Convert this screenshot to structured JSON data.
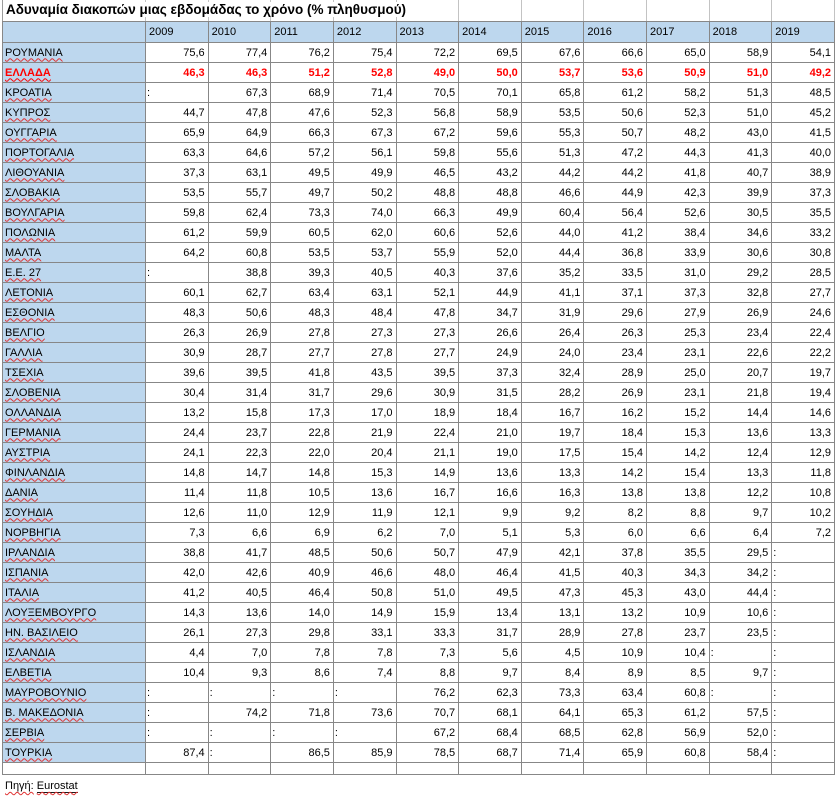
{
  "sheet": {
    "title": "Αδυναμία διακοπών μιας εβδομάδας το χρόνο (% πληθυσμού)",
    "columns": [
      "2009",
      "2010",
      "2011",
      "2012",
      "2013",
      "2014",
      "2015",
      "2016",
      "2017",
      "2018",
      "2019"
    ],
    "no_data_symbol": ":",
    "rows": [
      {
        "name": "ΡΟΥΜΑΝΙΑ",
        "highlight": false,
        "values": [
          "75,6",
          "77,4",
          "76,2",
          "75,4",
          "72,2",
          "69,5",
          "67,6",
          "66,6",
          "65,0",
          "58,9",
          "54,1"
        ]
      },
      {
        "name": "ΕΛΛΑΔΑ",
        "highlight": true,
        "values": [
          "46,3",
          "46,3",
          "51,2",
          "52,8",
          "49,0",
          "50,0",
          "53,7",
          "53,6",
          "50,9",
          "51,0",
          "49,2"
        ]
      },
      {
        "name": "ΚΡΟΑΤΙΑ",
        "highlight": false,
        "values": [
          ":",
          "67,3",
          "68,9",
          "71,4",
          "70,5",
          "70,1",
          "65,8",
          "61,2",
          "58,2",
          "51,3",
          "48,5"
        ]
      },
      {
        "name": "ΚΥΠΡΟΣ",
        "highlight": false,
        "values": [
          "44,7",
          "47,8",
          "47,6",
          "52,3",
          "56,8",
          "58,9",
          "53,5",
          "50,6",
          "52,3",
          "51,0",
          "45,2"
        ]
      },
      {
        "name": "ΟΥΓΓΑΡΙΑ",
        "highlight": false,
        "values": [
          "65,9",
          "64,9",
          "66,3",
          "67,3",
          "67,2",
          "59,6",
          "55,3",
          "50,7",
          "48,2",
          "43,0",
          "41,5"
        ]
      },
      {
        "name": "ΠΟΡΤΟΓΑΛΙΑ",
        "highlight": false,
        "values": [
          "63,3",
          "64,6",
          "57,2",
          "56,1",
          "59,8",
          "55,6",
          "51,3",
          "47,2",
          "44,3",
          "41,3",
          "40,0"
        ]
      },
      {
        "name": "ΛΙΘΟΥΑΝΙΑ",
        "highlight": false,
        "values": [
          "37,3",
          "63,1",
          "49,5",
          "49,9",
          "46,5",
          "43,2",
          "44,2",
          "44,2",
          "41,8",
          "40,7",
          "38,9"
        ]
      },
      {
        "name": "ΣΛΟΒΑΚΙΑ",
        "highlight": false,
        "values": [
          "53,5",
          "55,7",
          "49,7",
          "50,2",
          "48,8",
          "48,8",
          "46,6",
          "44,9",
          "42,3",
          "39,9",
          "37,3"
        ]
      },
      {
        "name": "ΒΟΥΛΓΑΡΙΑ",
        "highlight": false,
        "values": [
          "59,8",
          "62,4",
          "73,3",
          "74,0",
          "66,3",
          "49,9",
          "60,4",
          "56,4",
          "52,6",
          "30,5",
          "35,5"
        ]
      },
      {
        "name": "ΠΟΛΩΝΙΑ",
        "highlight": false,
        "values": [
          "61,2",
          "59,9",
          "60,5",
          "62,0",
          "60,6",
          "52,6",
          "44,0",
          "41,2",
          "38,4",
          "34,6",
          "33,2"
        ]
      },
      {
        "name": "ΜΑΛΤΑ",
        "highlight": false,
        "values": [
          "64,2",
          "60,8",
          "53,5",
          "53,7",
          "55,9",
          "52,0",
          "44,4",
          "36,8",
          "33,9",
          "30,6",
          "30,8"
        ]
      },
      {
        "name": "Ε.Ε. 27",
        "highlight": false,
        "values": [
          ":",
          "38,8",
          "39,3",
          "40,5",
          "40,3",
          "37,6",
          "35,2",
          "33,5",
          "31,0",
          "29,2",
          "28,5"
        ]
      },
      {
        "name": "ΛΕΤΟΝΙΑ",
        "highlight": false,
        "values": [
          "60,1",
          "62,7",
          "63,4",
          "63,1",
          "52,1",
          "44,9",
          "41,1",
          "37,1",
          "37,3",
          "32,8",
          "27,7"
        ]
      },
      {
        "name": "ΕΣΘΟΝΙΑ",
        "highlight": false,
        "values": [
          "48,3",
          "50,6",
          "48,3",
          "48,4",
          "47,8",
          "34,7",
          "31,9",
          "29,6",
          "27,9",
          "26,9",
          "24,6"
        ]
      },
      {
        "name": "ΒΕΛΓΙΟ",
        "highlight": false,
        "values": [
          "26,3",
          "26,9",
          "27,8",
          "27,3",
          "27,3",
          "26,6",
          "26,4",
          "26,3",
          "25,3",
          "23,4",
          "22,4"
        ]
      },
      {
        "name": "ΓΑΛΛΙΑ",
        "highlight": false,
        "values": [
          "30,9",
          "28,7",
          "27,7",
          "27,8",
          "27,7",
          "24,9",
          "24,0",
          "23,4",
          "23,1",
          "22,6",
          "22,2"
        ]
      },
      {
        "name": "ΤΣΕΧΙΑ",
        "highlight": false,
        "values": [
          "39,6",
          "39,5",
          "41,8",
          "43,5",
          "39,5",
          "37,3",
          "32,4",
          "28,9",
          "25,0",
          "20,7",
          "19,7"
        ]
      },
      {
        "name": "ΣΛΟΒΕΝΙΑ",
        "highlight": false,
        "values": [
          "30,4",
          "31,4",
          "31,7",
          "29,6",
          "30,9",
          "31,5",
          "28,2",
          "26,9",
          "23,1",
          "21,8",
          "19,4"
        ]
      },
      {
        "name": "ΟΛΛΑΝΔΙΑ",
        "highlight": false,
        "values": [
          "13,2",
          "15,8",
          "17,3",
          "17,0",
          "18,9",
          "18,4",
          "16,7",
          "16,2",
          "15,2",
          "14,4",
          "14,6"
        ]
      },
      {
        "name": "ΓΕΡΜΑΝΙΑ",
        "highlight": false,
        "values": [
          "24,4",
          "23,7",
          "22,8",
          "21,9",
          "22,4",
          "21,0",
          "19,7",
          "18,4",
          "15,3",
          "13,6",
          "13,3"
        ]
      },
      {
        "name": "ΑΥΣΤΡΙΑ",
        "highlight": false,
        "values": [
          "24,1",
          "22,3",
          "22,0",
          "20,4",
          "21,1",
          "19,0",
          "17,5",
          "15,4",
          "14,2",
          "12,4",
          "12,9"
        ]
      },
      {
        "name": "ΦΙΝΛΑΝΔΙΑ",
        "highlight": false,
        "values": [
          "14,8",
          "14,7",
          "14,8",
          "15,3",
          "14,9",
          "13,6",
          "13,3",
          "14,2",
          "15,4",
          "13,3",
          "11,8"
        ]
      },
      {
        "name": "ΔΑΝΙΑ",
        "highlight": false,
        "values": [
          "11,4",
          "11,8",
          "10,5",
          "13,6",
          "16,7",
          "16,6",
          "16,3",
          "13,8",
          "13,8",
          "12,2",
          "10,8"
        ]
      },
      {
        "name": "ΣΟΥΗΔΙΑ",
        "highlight": false,
        "values": [
          "12,6",
          "11,0",
          "12,9",
          "11,9",
          "12,1",
          "9,9",
          "9,2",
          "8,2",
          "8,8",
          "9,7",
          "10,2"
        ]
      },
      {
        "name": "ΝΟΡΒΗΓΙΑ",
        "highlight": false,
        "values": [
          "7,3",
          "6,6",
          "6,9",
          "6,2",
          "7,0",
          "5,1",
          "5,3",
          "6,0",
          "6,6",
          "6,4",
          "7,2"
        ]
      },
      {
        "name": "ΙΡΛΑΝΔΙΑ",
        "highlight": false,
        "values": [
          "38,8",
          "41,7",
          "48,5",
          "50,6",
          "50,7",
          "47,9",
          "42,1",
          "37,8",
          "35,5",
          "29,5",
          ":"
        ]
      },
      {
        "name": "ΙΣΠΑΝΙΑ",
        "highlight": false,
        "values": [
          "42,0",
          "42,6",
          "40,9",
          "46,6",
          "48,0",
          "46,4",
          "41,5",
          "40,3",
          "34,3",
          "34,2",
          ":"
        ]
      },
      {
        "name": "ΙΤΑΛΙΑ",
        "highlight": false,
        "values": [
          "41,2",
          "40,5",
          "46,4",
          "50,8",
          "51,0",
          "49,5",
          "47,3",
          "45,3",
          "43,0",
          "44,4",
          ":"
        ]
      },
      {
        "name": "ΛΟΥΞΕΜΒΟΥΡΓΟ",
        "highlight": false,
        "values": [
          "14,3",
          "13,6",
          "14,0",
          "14,9",
          "15,9",
          "13,4",
          "13,1",
          "13,2",
          "10,9",
          "10,6",
          ":"
        ]
      },
      {
        "name": "ΗΝ. ΒΑΣΙΛΕΙΟ",
        "highlight": false,
        "values": [
          "26,1",
          "27,3",
          "29,8",
          "33,1",
          "33,3",
          "31,7",
          "28,9",
          "27,8",
          "23,7",
          "23,5",
          ":"
        ]
      },
      {
        "name": "ΙΣΛΑΝΔΙΑ",
        "highlight": false,
        "values": [
          "4,4",
          "7,0",
          "7,8",
          "7,8",
          "7,3",
          "5,6",
          "4,5",
          "10,9",
          "10,4",
          ":",
          ":"
        ]
      },
      {
        "name": "ΕΛΒΕΤΙΑ",
        "highlight": false,
        "values": [
          "10,4",
          "9,3",
          "8,6",
          "7,4",
          "8,8",
          "9,7",
          "8,4",
          "8,9",
          "8,5",
          "9,7",
          ":"
        ]
      },
      {
        "name": "ΜΑΥΡΟΒΟΥΝΙΟ",
        "highlight": false,
        "values": [
          ":",
          ":",
          ":",
          ":",
          "76,2",
          "62,3",
          "73,3",
          "63,4",
          "60,8",
          ":",
          ":"
        ]
      },
      {
        "name": "Β. ΜΑΚΕΔΟΝΙΑ",
        "highlight": false,
        "values": [
          ":",
          "74,2",
          "71,8",
          "73,6",
          "70,7",
          "68,1",
          "64,1",
          "65,3",
          "61,2",
          "57,5",
          ":"
        ]
      },
      {
        "name": "ΣΕΡΒΙΑ",
        "highlight": false,
        "values": [
          ":",
          ":",
          ":",
          ":",
          "67,2",
          "68,4",
          "68,5",
          "62,8",
          "56,9",
          "52,0",
          ":"
        ]
      },
      {
        "name": "ΤΟΥΡΚΙΑ",
        "highlight": false,
        "values": [
          "87,4",
          ":",
          "86,5",
          "85,9",
          "78,5",
          "68,7",
          "71,4",
          "65,9",
          "60,8",
          "58,4",
          ":"
        ]
      }
    ],
    "footer": {
      "label": "Πηγή:",
      "link": "Eurostat"
    },
    "colors": {
      "fill_blue": "#BDD7EE",
      "text_red": "#FF0000",
      "grid": "#878787"
    }
  }
}
